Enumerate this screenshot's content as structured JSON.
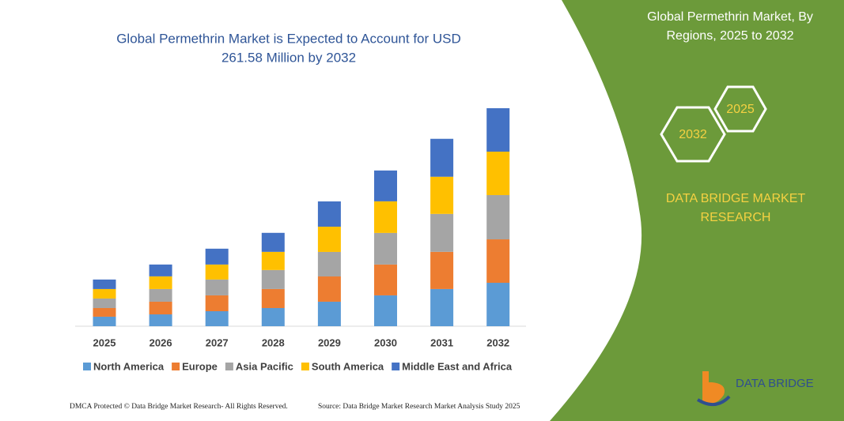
{
  "chart_data": {
    "type": "stacked_bar",
    "title": [
      "Global Permethrin Market is Expected to Account for USD",
      "261.58 Million by 2032"
    ],
    "categories": [
      "2025",
      "2026",
      "2027",
      "2028",
      "2029",
      "2030",
      "2031",
      "2032"
    ],
    "series": [
      {
        "name": "North America",
        "color": "#5b9bd5",
        "values": [
          11.4,
          14.2,
          18.0,
          21.8,
          29.4,
          37.0,
          44.6,
          52.1
        ]
      },
      {
        "name": "Europe",
        "color": "#ed7d31",
        "values": [
          10.4,
          15.2,
          19.0,
          22.8,
          30.3,
          37.0,
          44.6,
          52.1
        ]
      },
      {
        "name": "Asia Pacific",
        "color": "#a5a5a5",
        "values": [
          11.4,
          15.2,
          19.0,
          22.8,
          29.4,
          37.9,
          45.5,
          53.1
        ]
      },
      {
        "name": "South America",
        "color": "#ffc000",
        "values": [
          11.4,
          15.2,
          18.0,
          21.8,
          30.3,
          37.9,
          44.6,
          52.1
        ]
      },
      {
        "name": "Middle East and Africa",
        "color": "#4472c4",
        "values": [
          11.4,
          14.2,
          19.0,
          22.8,
          30.3,
          37.0,
          45.5,
          52.1
        ]
      }
    ],
    "legend": "bottom"
  },
  "side_panel": {
    "title": [
      "Global Permethrin Market, By",
      "Regions, 2025 to 2032"
    ],
    "hex_top": "2025",
    "hex_bottom": "2032",
    "brand": [
      "DATA BRIDGE MARKET",
      "RESEARCH"
    ],
    "logo": "DATA BRIDGE"
  },
  "footer": {
    "left": "DMCA Protected © Data Bridge Market Research-  All Rights Reserved.",
    "right": "Source: Data Bridge Market Research  Market Analysis Study 2025"
  }
}
